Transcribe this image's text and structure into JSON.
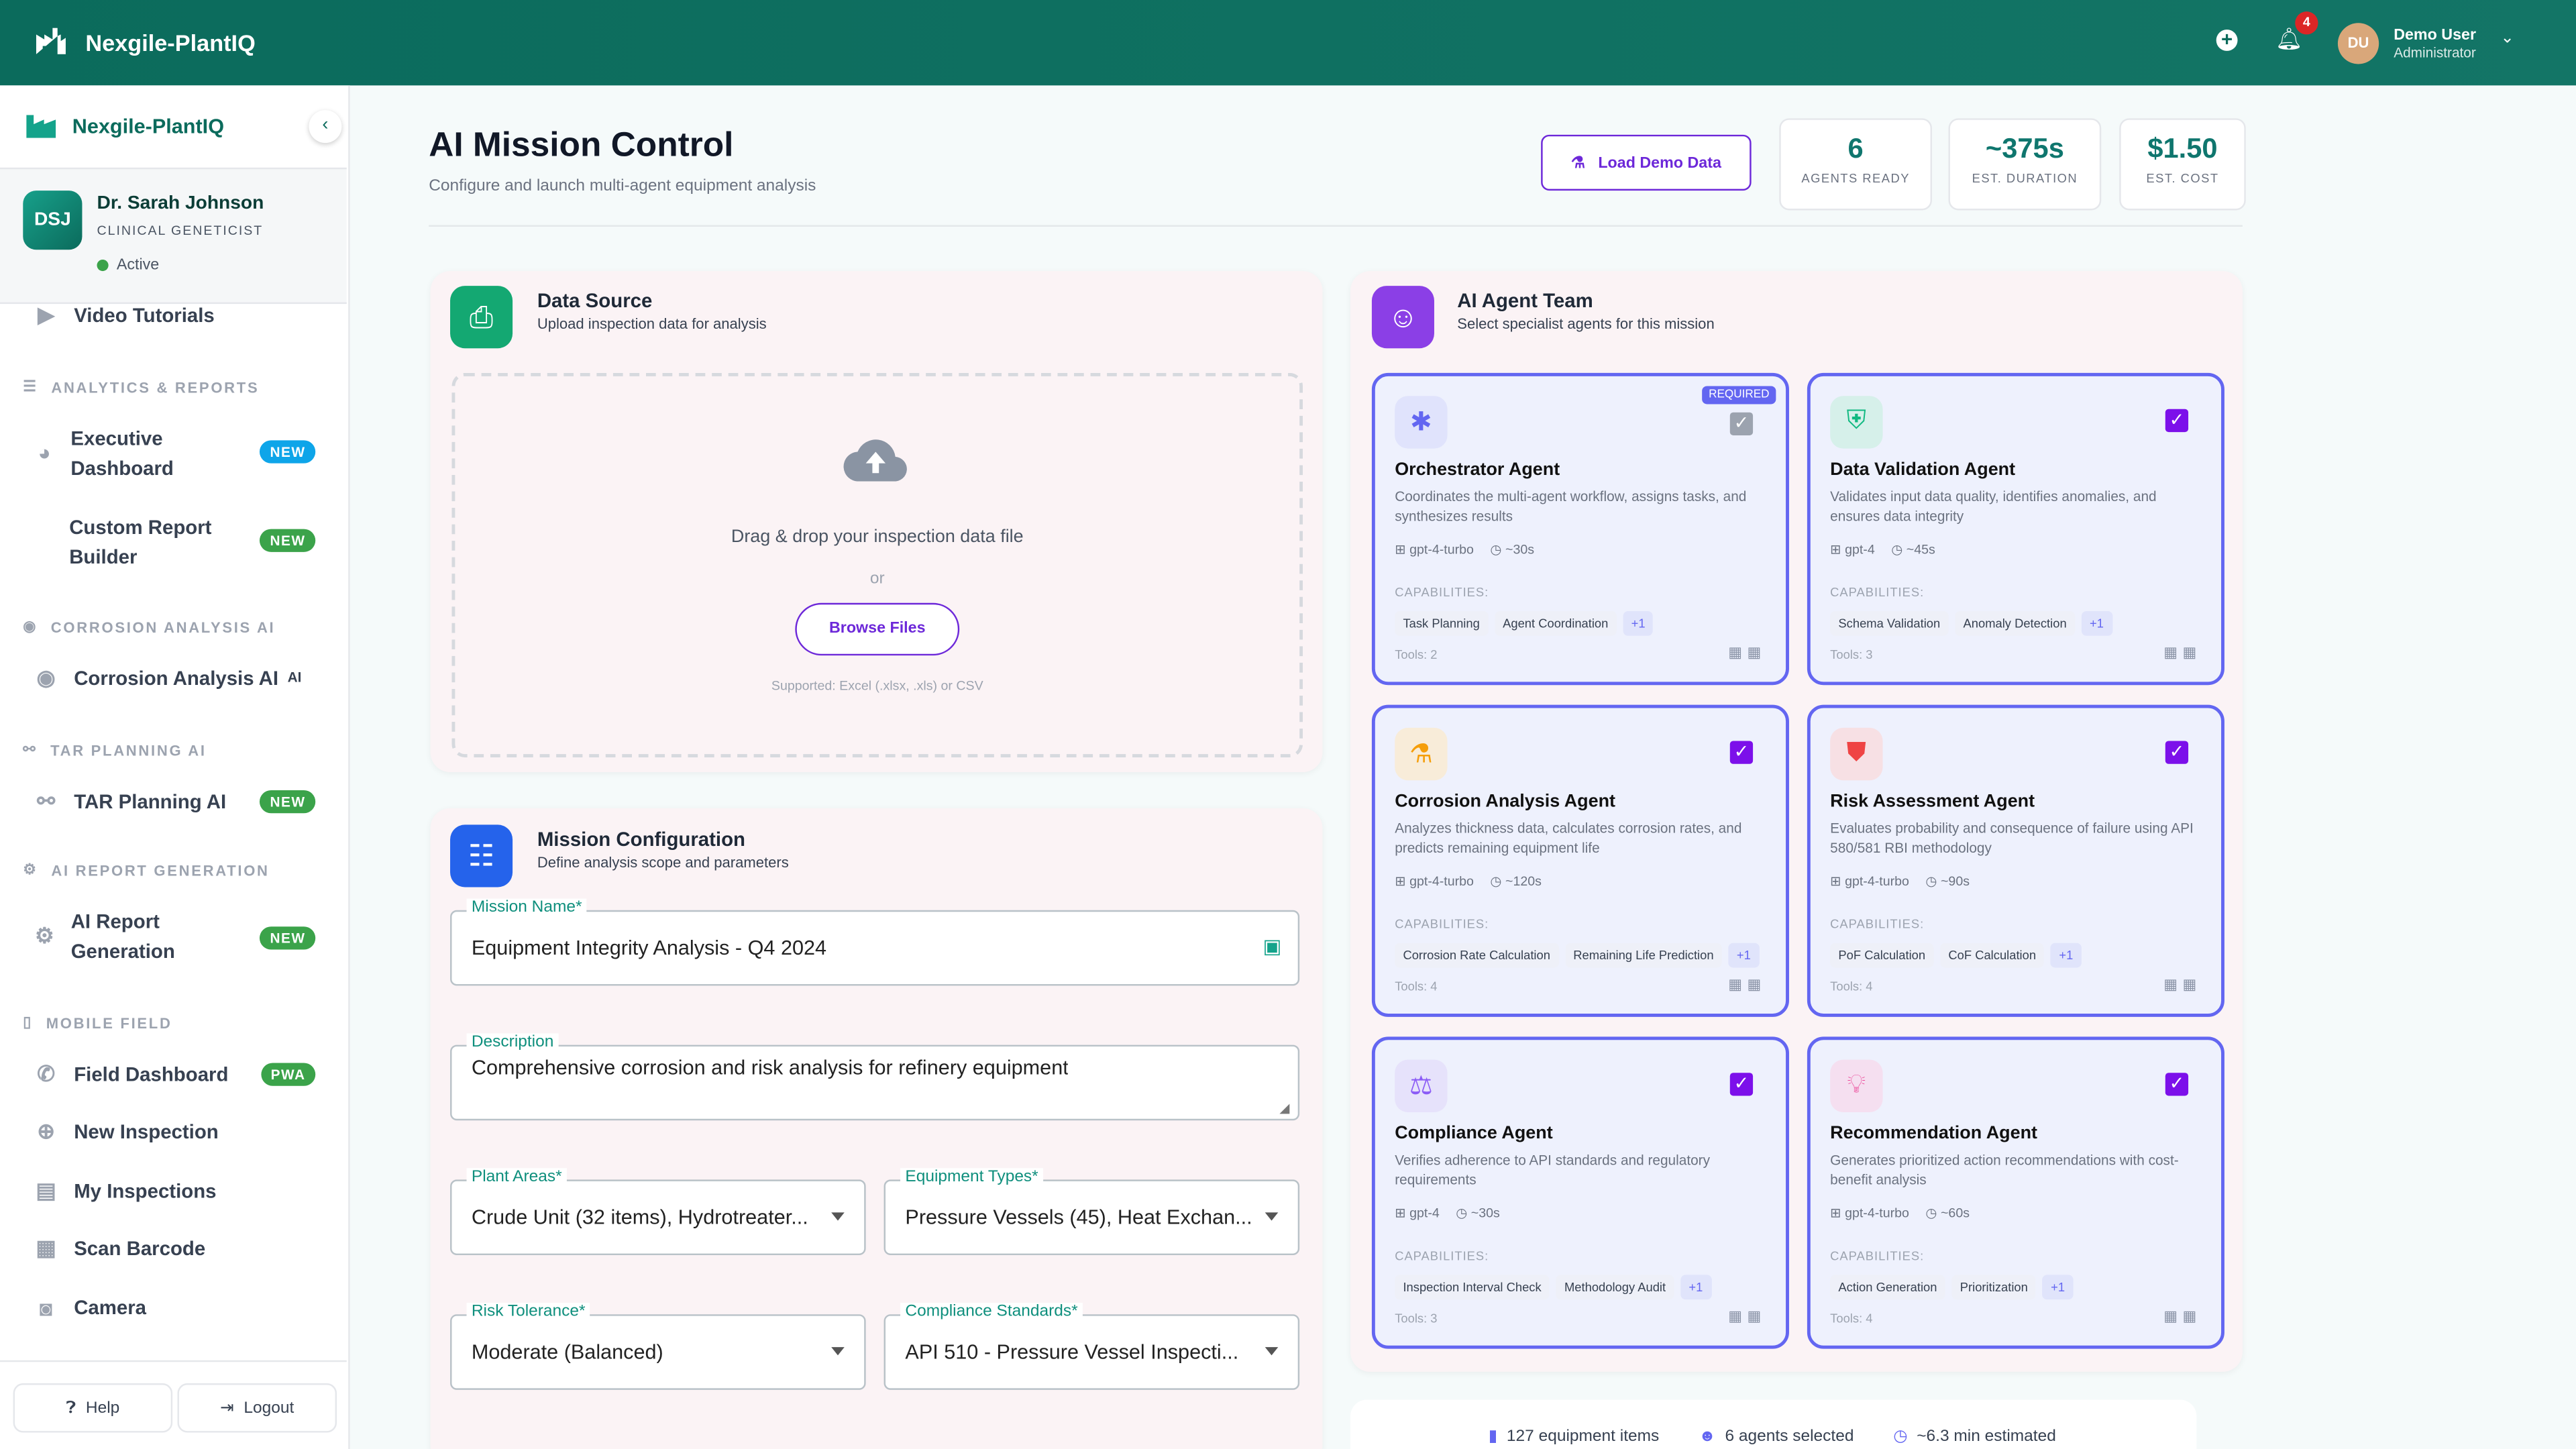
{
  "topbar": {
    "brand": "Nexgile-PlantIQ",
    "notifications": "4",
    "avatar": "DU",
    "user_name": "Demo User",
    "user_role": "Administrator"
  },
  "sidebar": {
    "brand": "Nexgile-PlantIQ",
    "profile": {
      "initials": "DSJ",
      "name": "Dr. Sarah Johnson",
      "role": "CLINICAL GENETICIST",
      "status": "Active"
    },
    "top_item": "Video Tutorials",
    "sections": [
      {
        "title": "ANALYTICS & REPORTS",
        "items": [
          {
            "label": "Executive Dashboard",
            "badge": "NEW"
          },
          {
            "label": "Custom Report Builder",
            "badge": "NEW"
          }
        ]
      },
      {
        "title": "CORROSION ANALYSIS AI",
        "items": [
          {
            "label": "Corrosion Analysis AI",
            "badge": "AI"
          }
        ]
      },
      {
        "title": "TAR PLANNING AI",
        "items": [
          {
            "label": "TAR Planning AI",
            "badge": "NEW"
          }
        ]
      },
      {
        "title": "AI REPORT GENERATION",
        "items": [
          {
            "label": "AI Report Generation",
            "badge": "NEW"
          }
        ]
      },
      {
        "title": "MOBILE FIELD",
        "items": [
          {
            "label": "Field Dashboard",
            "badge": "PWA"
          },
          {
            "label": "New Inspection"
          },
          {
            "label": "My Inspections"
          },
          {
            "label": "Scan Barcode"
          },
          {
            "label": "Camera"
          }
        ]
      }
    ],
    "help": "Help",
    "logout": "Logout"
  },
  "header": {
    "title": "AI Mission Control",
    "subtitle": "Configure and launch multi-agent equipment analysis",
    "load_demo": "Load Demo Data",
    "stats": [
      {
        "value": "6",
        "label": "AGENTS READY"
      },
      {
        "value": "~375s",
        "label": "EST. DURATION"
      },
      {
        "value": "$1.50",
        "label": "EST. COST"
      }
    ]
  },
  "data_source": {
    "title": "Data Source",
    "subtitle": "Upload inspection data for analysis",
    "drop_text": "Drag & drop your inspection data file",
    "or": "or",
    "browse": "Browse Files",
    "supported": "Supported: Excel (.xlsx, .xls) or CSV"
  },
  "mission": {
    "title": "Mission Configuration",
    "subtitle": "Define analysis scope and parameters",
    "name_label": "Mission Name*",
    "name_value": "Equipment Integrity Analysis - Q4 2024",
    "desc_label": "Description",
    "desc_value": "Comprehensive corrosion and risk analysis for refinery equipment",
    "areas_label": "Plant Areas*",
    "areas_value": "Crude Unit (32 items), Hydrotreater...",
    "types_label": "Equipment Types*",
    "types_value": "Pressure Vessels (45), Heat Exchan...",
    "risk_label": "Risk Tolerance*",
    "risk_value": "Moderate (Balanced)",
    "std_label": "Compliance Standards*",
    "std_value": "API 510 - Pressure Vessel Inspecti..."
  },
  "agents_panel": {
    "title": "AI Agent Team",
    "subtitle": "Select specialist agents for this mission",
    "required": "REQUIRED",
    "caps_label": "CAPABILITIES:",
    "agents": [
      {
        "name": "Orchestrator Agent",
        "desc": "Coordinates the multi-agent workflow, assigns tasks, and synthesizes results",
        "model": "gpt-4-turbo",
        "time": "~30s",
        "caps": [
          "Task Planning",
          "Agent Coordination"
        ],
        "more": "+1",
        "tools": "Tools: 2",
        "icon": "hub-icon",
        "color": "#6366f1",
        "bg": "#e0e3fc",
        "checked": true
      },
      {
        "name": "Data Validation Agent",
        "desc": "Validates input data quality, identifies anomalies, and ensures data integrity",
        "model": "gpt-4",
        "time": "~45s",
        "caps": [
          "Schema Validation",
          "Anomaly Detection"
        ],
        "more": "+1",
        "tools": "Tools: 3",
        "icon": "shield-check-icon",
        "color": "#10b981",
        "bg": "#d6f0ea",
        "checked": true
      },
      {
        "name": "Corrosion Analysis Agent",
        "desc": "Analyzes thickness data, calculates corrosion rates, and predicts remaining equipment life",
        "model": "gpt-4-turbo",
        "time": "~120s",
        "caps": [
          "Corrosion Rate Calculation",
          "Remaining Life Prediction"
        ],
        "more": "+1",
        "tools": "Tools: 4",
        "icon": "flask-icon",
        "color": "#f59e0b",
        "bg": "#f8ecd9",
        "checked": true
      },
      {
        "name": "Risk Assessment Agent",
        "desc": "Evaluates probability and consequence of failure using API 580/581 RBI methodology",
        "model": "gpt-4-turbo",
        "time": "~90s",
        "caps": [
          "PoF Calculation",
          "CoF Calculation"
        ],
        "more": "+1",
        "tools": "Tools: 4",
        "icon": "shield-alert-icon",
        "color": "#ef4444",
        "bg": "#f7e0e4",
        "checked": true
      },
      {
        "name": "Compliance Agent",
        "desc": "Verifies adherence to API standards and regulatory requirements",
        "model": "gpt-4",
        "time": "~30s",
        "caps": [
          "Inspection Interval Check",
          "Methodology Audit"
        ],
        "more": "+1",
        "tools": "Tools: 3",
        "icon": "gavel-icon",
        "color": "#8b5cf6",
        "bg": "#e6e2fb",
        "checked": true
      },
      {
        "name": "Recommendation Agent",
        "desc": "Generates prioritized action recommendations with cost-benefit analysis",
        "model": "gpt-4-turbo",
        "time": "~60s",
        "caps": [
          "Action Generation",
          "Prioritization"
        ],
        "more": "+1",
        "tools": "Tools: 4",
        "icon": "lightbulb-icon",
        "color": "#ec4899",
        "bg": "#f5dff0",
        "checked": true
      }
    ]
  },
  "summary": {
    "items": "127 equipment items",
    "agents": "6 agents selected",
    "time": "~6.3 min estimated"
  }
}
